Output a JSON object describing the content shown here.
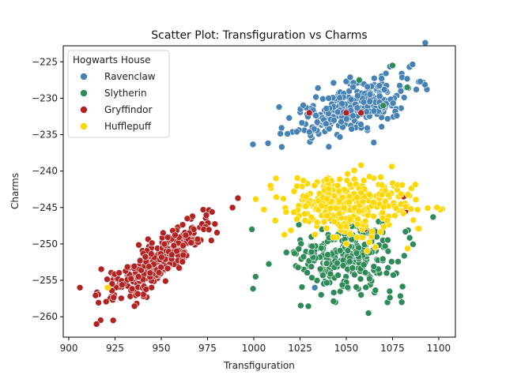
{
  "chart_data": {
    "type": "scatter",
    "title": "Scatter Plot: Transfiguration vs Charms",
    "xlabel": "Transfiguration",
    "ylabel": "Charms",
    "xlim": [
      897,
      1109
    ],
    "ylim": [
      -262.8,
      -222.8
    ],
    "xticks": [
      900,
      925,
      950,
      975,
      1000,
      1025,
      1050,
      1075,
      1100
    ],
    "yticks": [
      -225,
      -230,
      -235,
      -240,
      -245,
      -250,
      -255,
      -260
    ],
    "grid": false,
    "legend": {
      "title": "Hogwarts House",
      "placement": "top-left"
    },
    "series": [
      {
        "name": "Ravenclaw",
        "color": "#4682B4",
        "cluster": {
          "cx": 1055,
          "cy": -231.2,
          "sdx": 16,
          "sdy": 1.6,
          "slope": 0.09,
          "n": 330
        },
        "outliers": [
          [
            1033,
            -256
          ],
          [
            1048,
            -250.5
          ],
          [
            1054,
            -247.5
          ],
          [
            1047,
            -244
          ],
          [
            1055,
            -252
          ],
          [
            1065,
            -249
          ],
          [
            1062,
            -248.5
          ]
        ]
      },
      {
        "name": "Slytherin",
        "color": "#2E8B57",
        "cluster": {
          "cx": 1050,
          "cy": -252,
          "sdx": 15,
          "sdy": 2.5,
          "slope": 0.02,
          "n": 260
        },
        "outliers": [
          [
            1075,
            -225.5
          ],
          [
            1057,
            -227.5
          ],
          [
            1070,
            -231
          ],
          [
            1083,
            -228.5
          ],
          [
            999,
            -248
          ],
          [
            1001,
            -254.5
          ],
          [
            1062,
            -259.5
          ],
          [
            1080,
            -258
          ],
          [
            1058,
            -257
          ]
        ]
      },
      {
        "name": "Gryffindor",
        "color": "#B22222",
        "cluster": {
          "cx": 947,
          "cy": -252.5,
          "sdx": 15,
          "sdy": 1.5,
          "slope": 0.17,
          "n": 320
        },
        "outliers": [
          [
            1030,
            -232
          ],
          [
            1050,
            -232
          ],
          [
            1058,
            -232
          ],
          [
            1081,
            -243.5
          ],
          [
            1082,
            -245.5
          ],
          [
            1060,
            -248
          ],
          [
            915,
            -261
          ],
          [
            924,
            -260.5
          ],
          [
            906,
            -256
          ]
        ]
      },
      {
        "name": "Hufflepuff",
        "color": "#FFD700",
        "cluster": {
          "cx": 1052,
          "cy": -244.5,
          "sdx": 17,
          "sdy": 1.9,
          "slope": 0.0,
          "n": 340
        },
        "outliers": [
          [
            921,
            -256
          ],
          [
            1099,
            -245
          ],
          [
            1058,
            -239.2
          ],
          [
            1009,
            -242
          ],
          [
            1012,
            -241
          ]
        ]
      }
    ]
  }
}
